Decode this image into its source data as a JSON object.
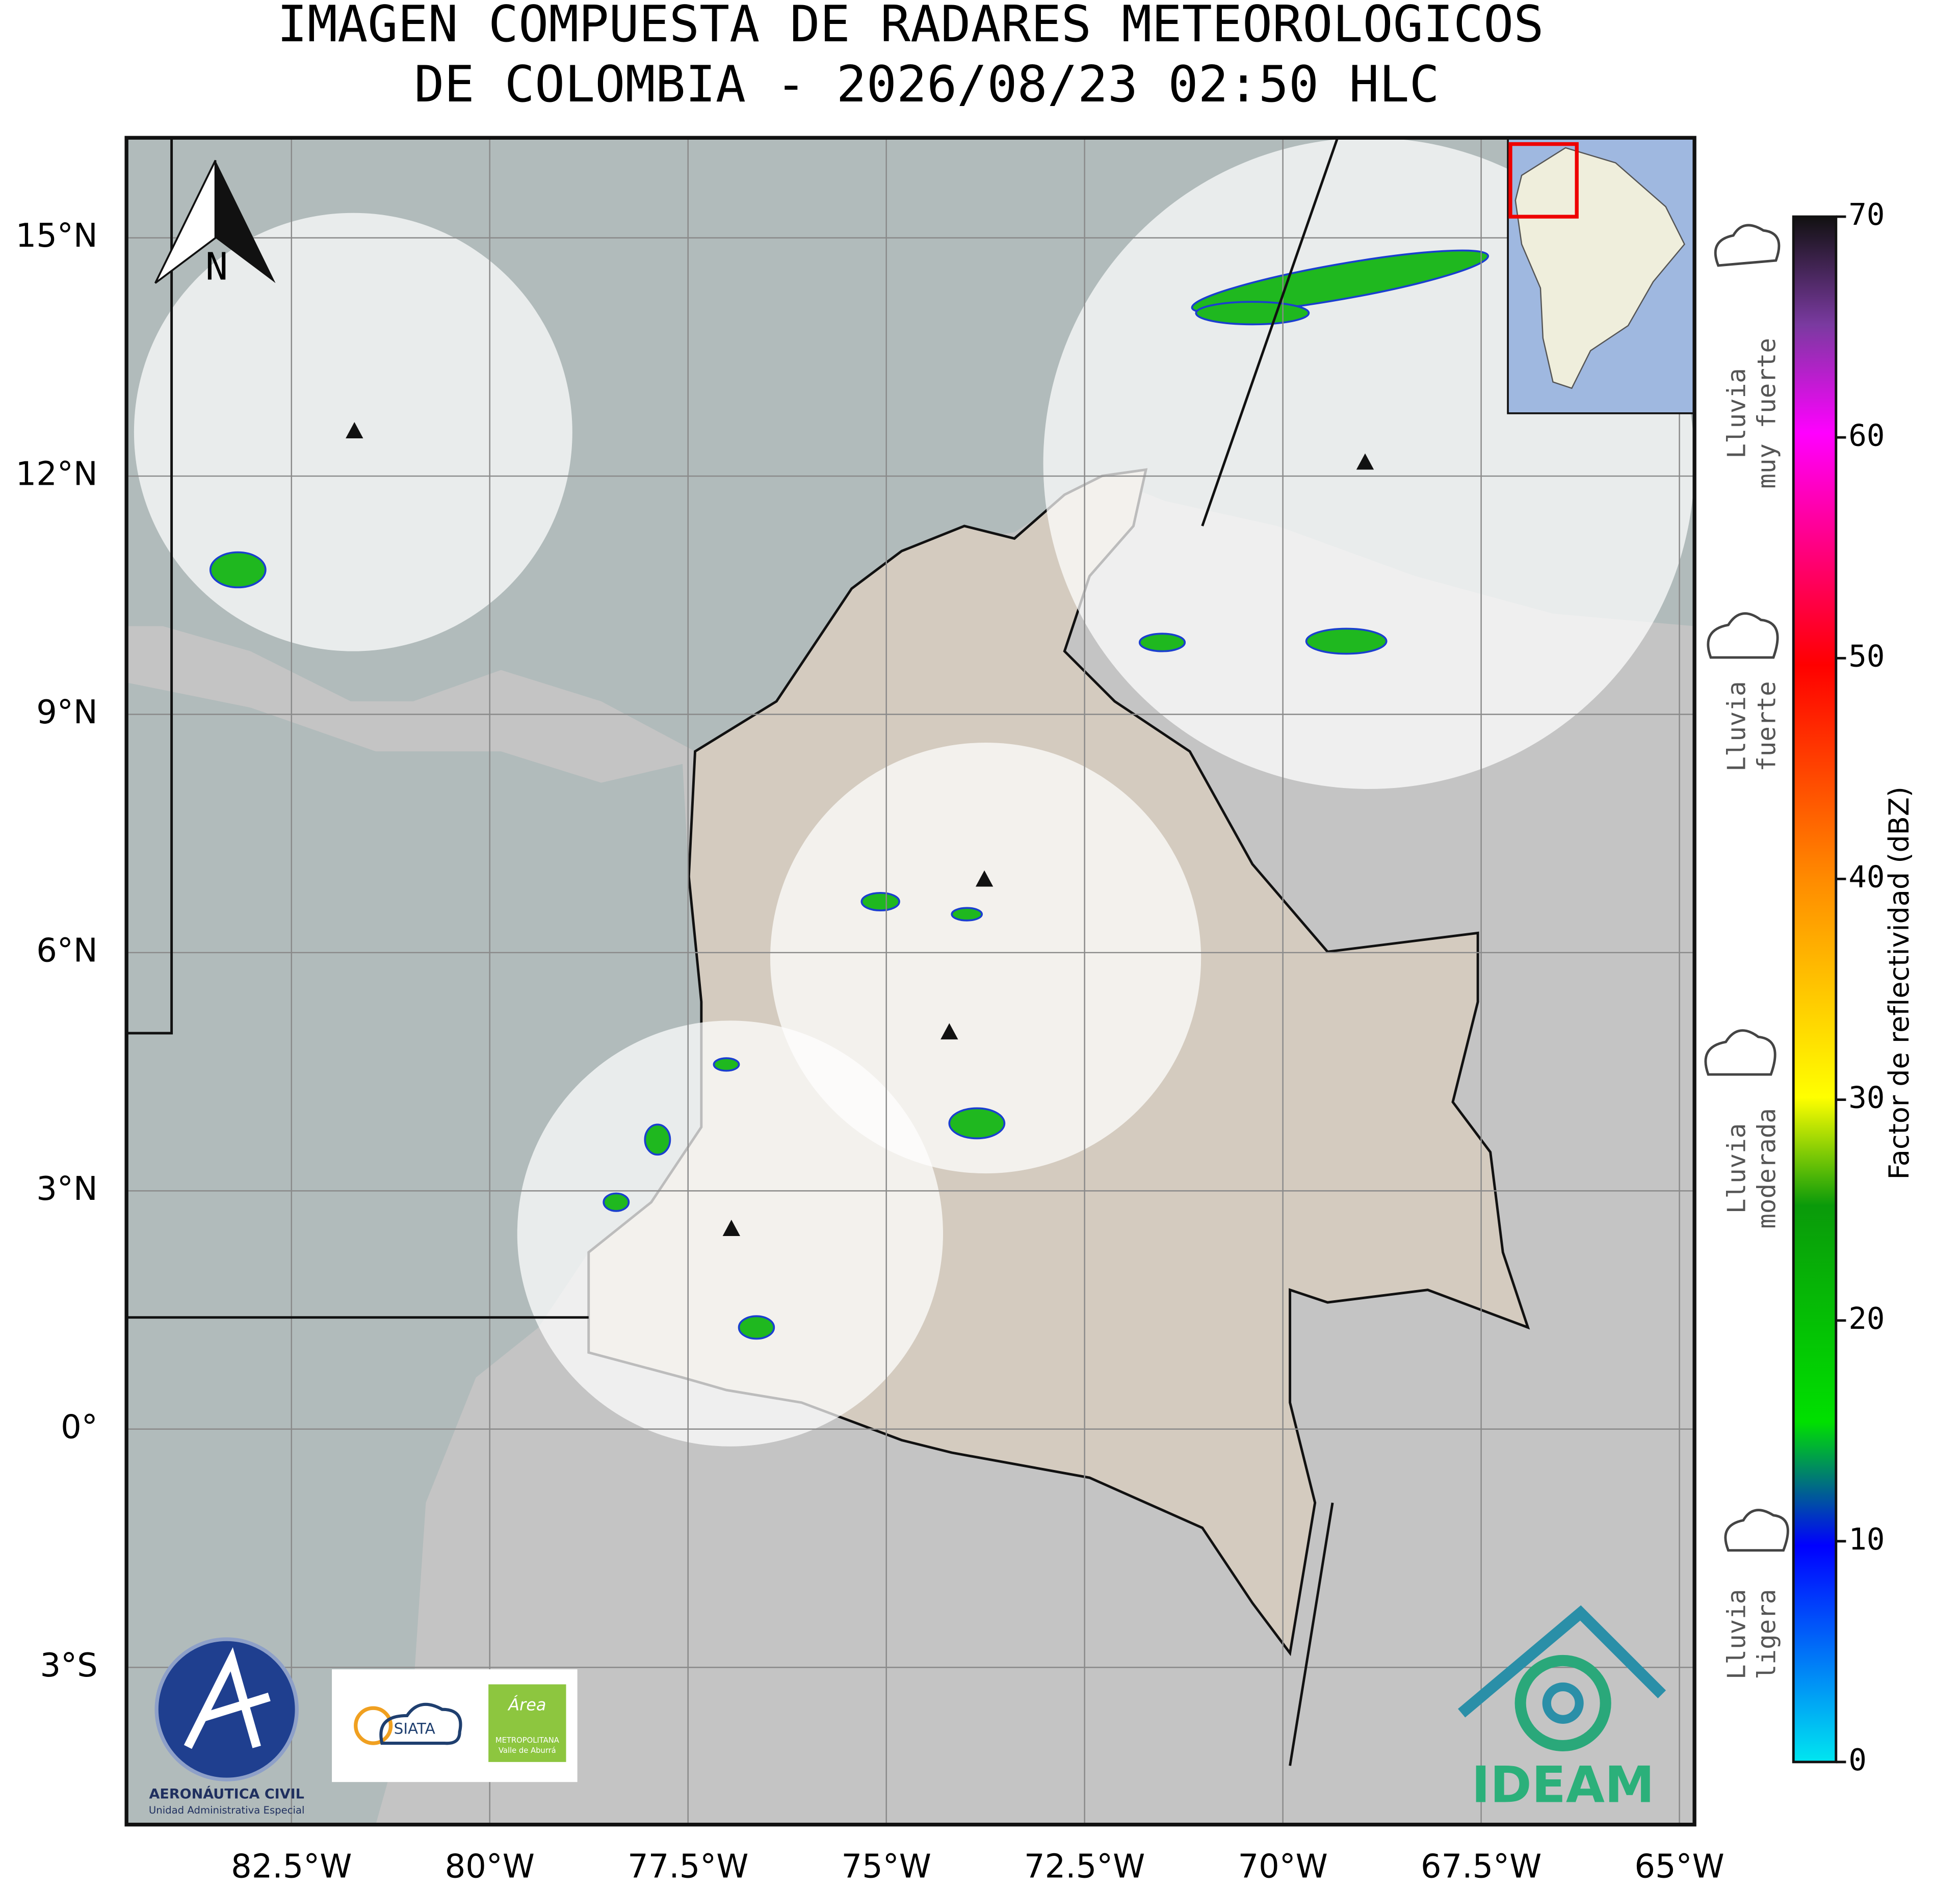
{
  "header": {
    "title": [
      "IMAGEN COMPUESTA DE RADARES METEOROLOGICOS",
      "DE COLOMBIA - 2026/08/23 02:50 HLC"
    ]
  },
  "map": {
    "lon_range": [
      -84.58,
      -64.81
    ],
    "lat_range": [
      -4.98,
      16.26
    ],
    "lon_ticks": [
      {
        "value": -82.5,
        "label": "82.5°W"
      },
      {
        "value": -80,
        "label": "80°W"
      },
      {
        "value": -77.5,
        "label": "77.5°W"
      },
      {
        "value": -75,
        "label": "75°W"
      },
      {
        "value": -72.5,
        "label": "72.5°W"
      },
      {
        "value": -70,
        "label": "70°W"
      },
      {
        "value": -67.5,
        "label": "67.5°W"
      },
      {
        "value": -65,
        "label": "65°W"
      }
    ],
    "lat_ticks": [
      {
        "value": 15,
        "label": "15°N"
      },
      {
        "value": 12,
        "label": "12°N"
      },
      {
        "value": 9,
        "label": "9°N"
      },
      {
        "value": 6,
        "label": "6°N"
      },
      {
        "value": 3,
        "label": "3°N"
      },
      {
        "value": 0,
        "label": "0°"
      },
      {
        "value": -3,
        "label": "3°S"
      }
    ],
    "north": "N"
  },
  "colorbar": {
    "label": "Factor de reflectividad (dBZ)",
    "range": [
      0,
      70
    ],
    "ticks": [
      0,
      10,
      20,
      30,
      40,
      50,
      60,
      70
    ]
  },
  "rain_labels": [
    [
      "Lluvia",
      "ligera"
    ],
    [
      "Lluvia",
      "moderada"
    ],
    [
      "Lluvia",
      "fuerte"
    ],
    [
      "Lluvia",
      "muy fuerte"
    ]
  ],
  "logos": {
    "aerocivil": [
      "AERONÁUTICA CIVIL",
      "Unidad Administrativa Especial"
    ],
    "siata": "SIATA",
    "area": [
      "Área",
      "METROPOLITANA",
      "Valle de Aburrá"
    ],
    "ideam": "IDEAM"
  }
}
